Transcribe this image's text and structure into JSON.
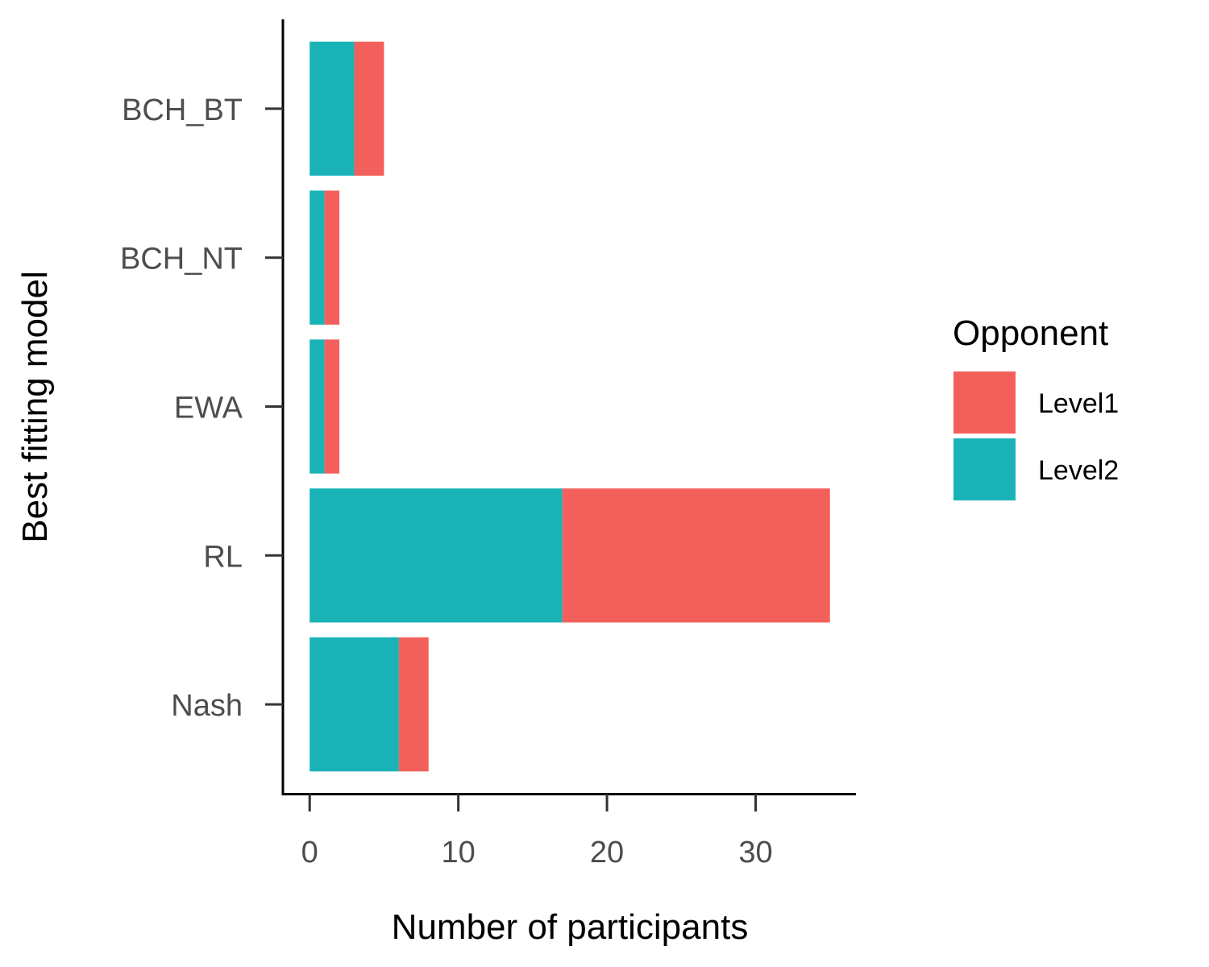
{
  "chart_data": {
    "type": "bar",
    "orientation": "horizontal",
    "stacked": true,
    "categories": [
      "BCH_BT",
      "BCH_NT",
      "EWA",
      "RL",
      "Nash"
    ],
    "series": [
      {
        "name": "Level2",
        "values": [
          3,
          1,
          1,
          17,
          6
        ],
        "color": "#19b3b7"
      },
      {
        "name": "Level1",
        "values": [
          2,
          1,
          1,
          18,
          2
        ],
        "color": "#f3605c"
      }
    ],
    "xlabel": "Number of participants",
    "ylabel": "Best fitting model",
    "xticks": [
      0,
      10,
      20,
      30
    ],
    "xlim": [
      -1.8,
      36.75
    ],
    "legend": {
      "title": "Opponent",
      "position": "right",
      "entries": [
        "Level1",
        "Level2"
      ]
    },
    "grid": false
  }
}
